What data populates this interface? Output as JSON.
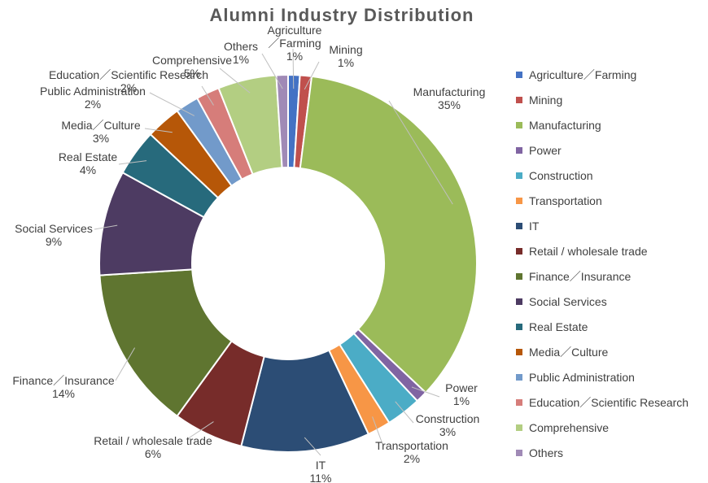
{
  "chart_data": {
    "type": "pie",
    "title": "Alumni Industry Distribution",
    "legend_position": "right",
    "slices": [
      {
        "name": "Agriculture／Farming",
        "value": 1,
        "label_lines": [
          "Agriculture",
          "／Farming"
        ],
        "value_label": "1%",
        "color": "#4472C4"
      },
      {
        "name": "Mining",
        "value": 1,
        "label_lines": [
          "Mining"
        ],
        "value_label": "1%",
        "color": "#C0504D"
      },
      {
        "name": "Manufacturing",
        "value": 35,
        "label_lines": [
          "Manufacturing"
        ],
        "value_label": "35%",
        "color": "#9BBB59"
      },
      {
        "name": "Power",
        "value": 1,
        "label_lines": [
          "Power"
        ],
        "value_label": "1%",
        "color": "#8064A2"
      },
      {
        "name": "Construction",
        "value": 3,
        "label_lines": [
          "Construction"
        ],
        "value_label": "3%",
        "color": "#4BACC6"
      },
      {
        "name": "Transportation",
        "value": 2,
        "label_lines": [
          "Transportation"
        ],
        "value_label": "2%",
        "color": "#F79646"
      },
      {
        "name": "IT",
        "value": 11,
        "label_lines": [
          "IT"
        ],
        "value_label": "11%",
        "color": "#2C4D75"
      },
      {
        "name": "Retail / wholesale trade",
        "value": 6,
        "label_lines": [
          "Retail / wholesale trade"
        ],
        "value_label": "6%",
        "color": "#772C2A"
      },
      {
        "name": "Finance／Insurance",
        "value": 14,
        "label_lines": [
          "Finance／Insurance"
        ],
        "value_label": "14%",
        "color": "#5F7530"
      },
      {
        "name": "Social Services",
        "value": 9,
        "label_lines": [
          "Social Services"
        ],
        "value_label": "9%",
        "color": "#4D3B62"
      },
      {
        "name": "Real Estate",
        "value": 4,
        "label_lines": [
          "Real Estate"
        ],
        "value_label": "4%",
        "color": "#276A7C"
      },
      {
        "name": "Media／Culture",
        "value": 3,
        "label_lines": [
          "Media／Culture"
        ],
        "value_label": "3%",
        "color": "#B65708"
      },
      {
        "name": "Public Administration",
        "value": 2,
        "label_lines": [
          "Public Administration"
        ],
        "value_label": "2%",
        "color": "#729ACA"
      },
      {
        "name": "Education／Scientific Research",
        "value": 2,
        "label_lines": [
          "Education／Scientific Research"
        ],
        "value_label": "2%",
        "color": "#D67D7A"
      },
      {
        "name": "Comprehensive",
        "value": 5,
        "label_lines": [
          "Comprehensive"
        ],
        "value_label": "5%",
        "color": "#B3CE82"
      },
      {
        "name": "Others",
        "value": 1,
        "label_lines": [
          "Others"
        ],
        "value_label": "1%",
        "color": "#A08AB6"
      }
    ]
  }
}
